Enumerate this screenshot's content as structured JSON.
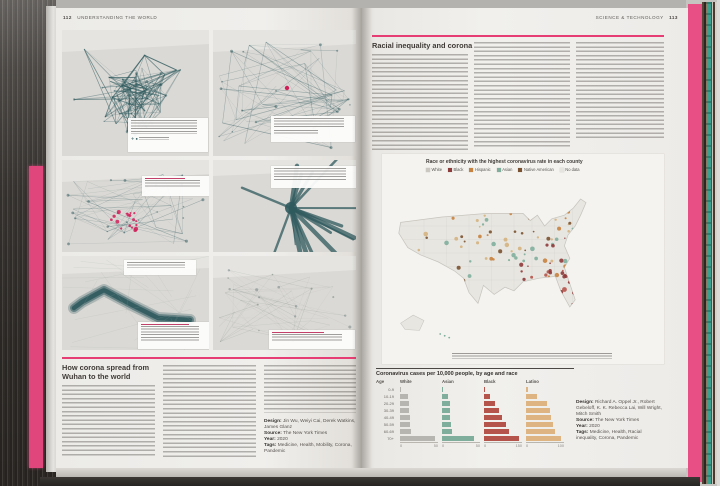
{
  "left_page": {
    "page_number": "112",
    "running_head": "UNDERSTANDING THE WORLD",
    "article_title": "How corona spread from Wuhan to the world",
    "credits": {
      "design_label": "Design:",
      "design": "Jin Wu, Weiyi Cai, Derek Watkins, James Glanz",
      "source_label": "Source:",
      "source": "The New York Times",
      "year_label": "Year:",
      "year": "2020",
      "tags_label": "Tags:",
      "tags": "Medicine, Health, Mobility, Corona, Pandemic"
    }
  },
  "right_page": {
    "page_number": "113",
    "running_head": "SCIENCE & TECHNOLOGY",
    "article_title": "Racial inequality and corona",
    "map": {
      "title": "Race or ethnicity with the highest coronavirus rate in each county",
      "legend": [
        {
          "label": "White",
          "color": "#c9c7c0"
        },
        {
          "label": "Black",
          "color": "#8e3b3b"
        },
        {
          "label": "Hispanic",
          "color": "#c8823f"
        },
        {
          "label": "Asian",
          "color": "#7fae9c"
        },
        {
          "label": "Native American",
          "color": "#7a5230"
        },
        {
          "label": "No data",
          "color": "#e6e4df"
        }
      ]
    },
    "credits": {
      "design_label": "Design:",
      "design": "Richard A. Oppel Jr., Robert Gebeloff, K. K. Rebecca Lai, Will Wright, Mitch Smith",
      "source_label": "Source:",
      "source": "The New York Times",
      "year_label": "Year:",
      "year": "2020",
      "tags_label": "Tags:",
      "tags": "Medicine, Health, Racial inequality, Corona, Pandemic"
    }
  },
  "chart_data": {
    "type": "bar",
    "title": "Coronavirus cases per 10,000 people, by age and race",
    "age_header": "Age",
    "categories": [
      "0-9",
      "10-19",
      "20-29",
      "30-39",
      "40-49",
      "50-59",
      "60-69",
      "70+"
    ],
    "series": [
      {
        "name": "White",
        "color": "#b7b5af",
        "axis_max": 50,
        "values": [
          1,
          10,
          12,
          12,
          13,
          13,
          15,
          46
        ]
      },
      {
        "name": "Asian",
        "color": "#7fae9c",
        "axis_max": 50,
        "values": [
          1,
          8,
          10,
          11,
          11,
          12,
          13,
          42
        ]
      },
      {
        "name": "Black",
        "color": "#b5544b",
        "axis_max": 150,
        "values": [
          4,
          25,
          45,
          60,
          72,
          85,
          100,
          138
        ]
      },
      {
        "name": "Latino",
        "color": "#ddb482",
        "axis_max": 100,
        "values": [
          5,
          30,
          55,
          62,
          66,
          70,
          75,
          92
        ]
      }
    ],
    "xlim": [
      0,
      150
    ],
    "unit": "cases per 10,000 people",
    "grid": false,
    "legend_position": "column-headers",
    "accent_color": "#e63e74",
    "network_color": "#2f5a5e",
    "highlight_red": "#d0205a"
  }
}
